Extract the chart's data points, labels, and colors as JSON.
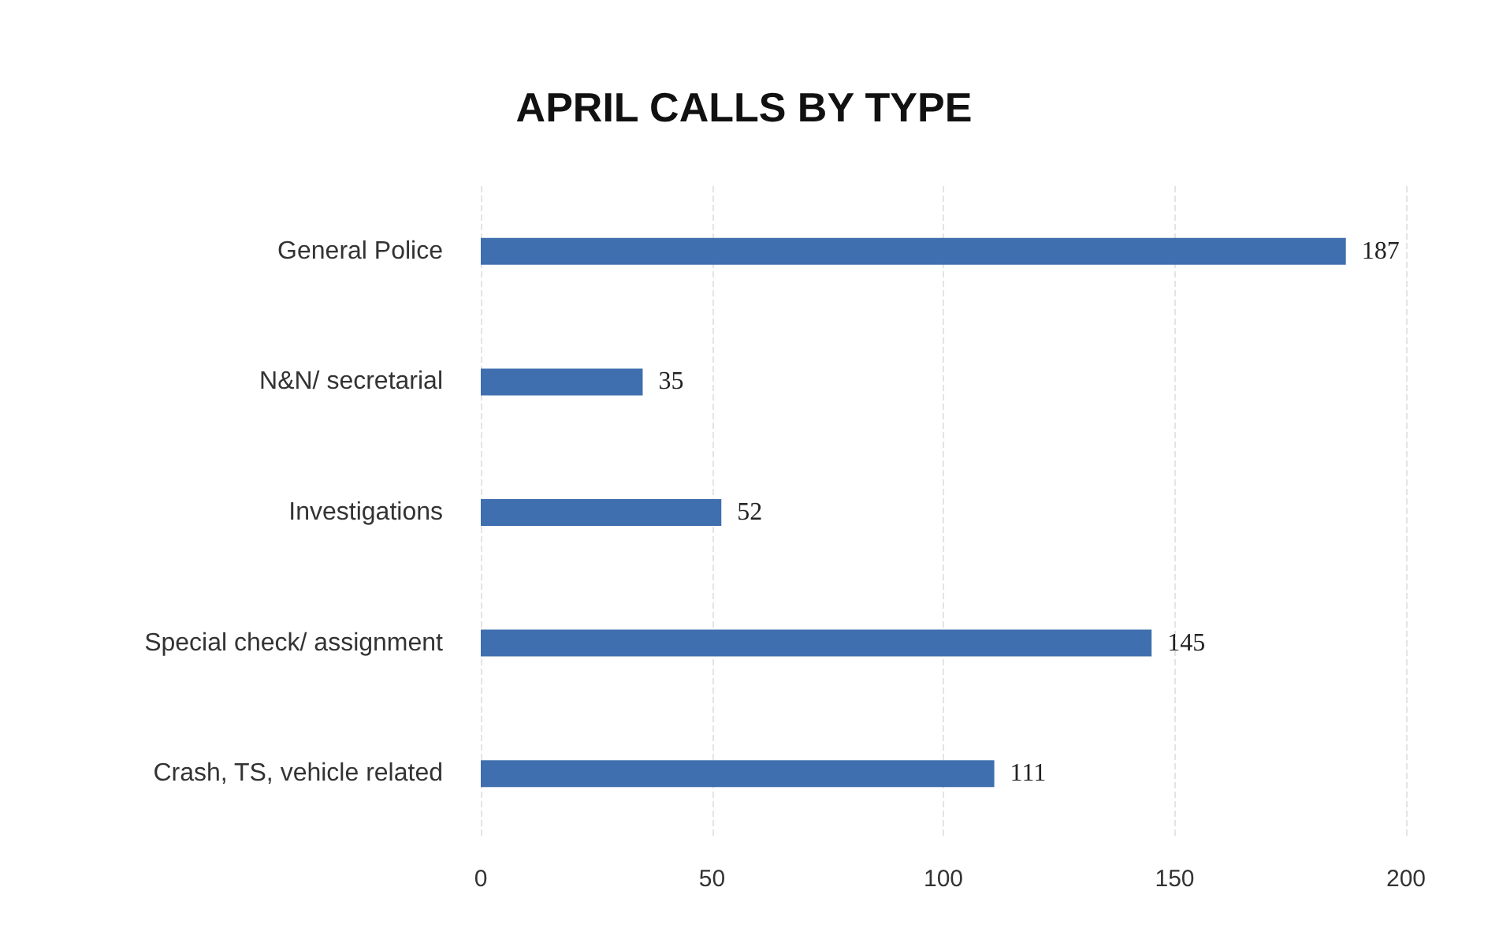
{
  "chart_data": {
    "type": "bar",
    "orientation": "horizontal",
    "title": "APRIL CALLS BY TYPE",
    "categories": [
      "General Police",
      "N&N/ secretarial",
      "Investigations",
      "Special check/ assignment",
      "Crash, TS, vehicle related"
    ],
    "values": [
      187,
      35,
      52,
      145,
      111
    ],
    "color": "#3f6fae",
    "xlim": [
      0,
      200
    ],
    "xticks": [
      0,
      50,
      100,
      150,
      200
    ],
    "grid": "x",
    "data_labels": true
  }
}
